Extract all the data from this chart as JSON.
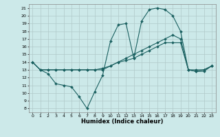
{
  "xlabel": "Humidex (Indice chaleur)",
  "background_color": "#cce9e9",
  "grid_color": "#b0c8c8",
  "line_color": "#1a6060",
  "xlim": [
    -0.5,
    23.5
  ],
  "ylim": [
    7.5,
    21.5
  ],
  "xticks": [
    0,
    1,
    2,
    3,
    4,
    5,
    6,
    7,
    8,
    9,
    10,
    11,
    12,
    13,
    14,
    15,
    16,
    17,
    18,
    19,
    20,
    21,
    22,
    23
  ],
  "yticks": [
    8,
    9,
    10,
    11,
    12,
    13,
    14,
    15,
    16,
    17,
    18,
    19,
    20,
    21
  ],
  "line1_x": [
    0,
    1,
    2,
    3,
    4,
    5,
    6,
    7,
    8,
    9,
    10,
    11,
    12,
    13,
    14,
    15,
    16,
    17,
    18,
    19,
    20,
    21,
    22,
    23
  ],
  "line1_y": [
    14.0,
    13.0,
    12.5,
    11.2,
    11.0,
    10.8,
    9.5,
    8.0,
    10.2,
    12.3,
    16.7,
    18.8,
    19.0,
    14.5,
    19.3,
    20.8,
    21.0,
    20.8,
    20.0,
    18.0,
    13.0,
    12.8,
    12.8,
    13.5
  ],
  "line2_x": [
    0,
    1,
    2,
    3,
    4,
    5,
    6,
    7,
    8,
    9,
    10,
    11,
    12,
    13,
    14,
    15,
    16,
    17,
    18,
    19,
    20,
    21,
    22,
    23
  ],
  "line2_y": [
    14.0,
    13.0,
    13.0,
    13.0,
    13.0,
    13.0,
    13.0,
    13.0,
    13.0,
    13.0,
    13.5,
    14.0,
    14.5,
    15.0,
    15.5,
    16.0,
    16.5,
    17.0,
    17.5,
    17.0,
    13.0,
    12.8,
    13.0,
    13.5
  ],
  "line3_x": [
    0,
    1,
    2,
    3,
    4,
    5,
    6,
    7,
    8,
    9,
    10,
    11,
    12,
    13,
    14,
    15,
    16,
    17,
    18,
    19,
    20,
    21,
    22,
    23
  ],
  "line3_y": [
    14.0,
    13.0,
    13.0,
    13.0,
    13.0,
    13.0,
    13.0,
    13.0,
    13.0,
    13.2,
    13.5,
    14.0,
    14.2,
    14.5,
    15.0,
    15.5,
    16.0,
    16.5,
    16.5,
    16.5,
    13.0,
    13.0,
    13.0,
    13.5
  ]
}
